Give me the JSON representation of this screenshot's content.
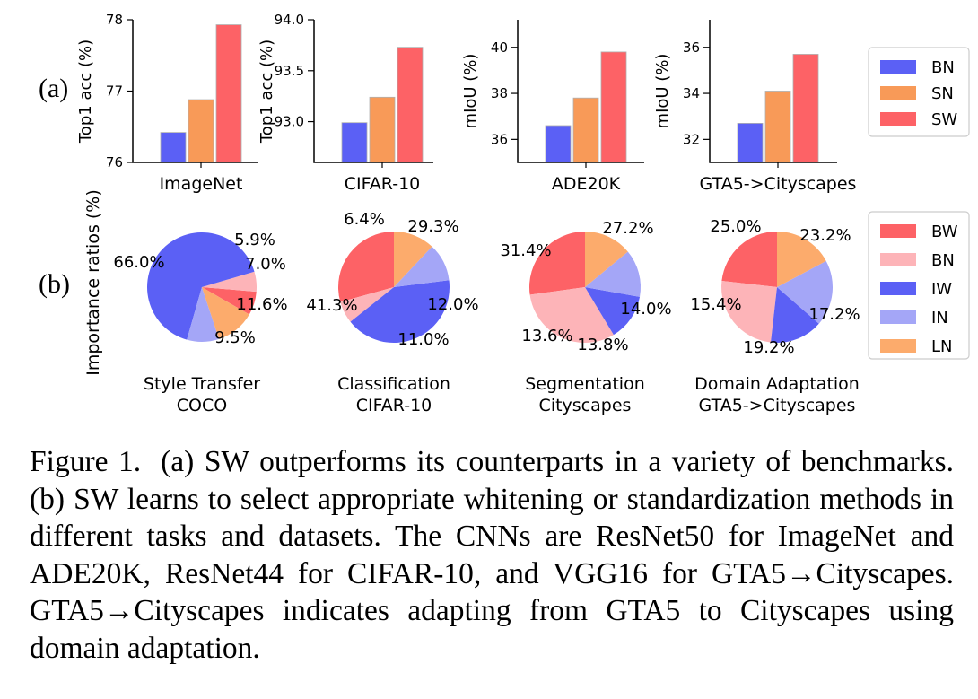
{
  "panel_labels": {
    "a": "(a)",
    "b": "(b)"
  },
  "chart_data": [
    {
      "type": "bar",
      "panel": "a",
      "xlabel": "ImageNet",
      "ylabel": "Top1 acc (%)",
      "ylim": [
        76,
        78
      ],
      "yticks": [
        76,
        77,
        78
      ],
      "ytick_labels": [
        "76",
        "77",
        "78"
      ],
      "categories": [
        "BN",
        "SN",
        "SW"
      ],
      "values": [
        76.42,
        76.88,
        77.93
      ]
    },
    {
      "type": "bar",
      "panel": "a",
      "xlabel": "CIFAR-10",
      "ylabel": "Top1 acc (%)",
      "ylim": [
        92.6,
        94.0
      ],
      "yticks": [
        93.0,
        93.5,
        94.0
      ],
      "ytick_labels": [
        "93.0",
        "93.5",
        "94.0"
      ],
      "categories": [
        "BN",
        "SN",
        "SW"
      ],
      "values": [
        92.99,
        93.24,
        93.73
      ]
    },
    {
      "type": "bar",
      "panel": "a",
      "xlabel": "ADE20K",
      "ylabel": "mIoU (%)",
      "ylim": [
        35.0,
        41.2
      ],
      "yticks": [
        36,
        38,
        40
      ],
      "ytick_labels": [
        "36",
        "38",
        "40"
      ],
      "categories": [
        "BN",
        "SN",
        "SW"
      ],
      "values": [
        36.6,
        37.8,
        39.8
      ]
    },
    {
      "type": "bar",
      "panel": "a",
      "xlabel": "GTA5->Cityscapes",
      "ylabel": "mIoU (%)",
      "ylim": [
        31.0,
        37.2
      ],
      "yticks": [
        32,
        34,
        36
      ],
      "ytick_labels": [
        "32",
        "34",
        "36"
      ],
      "categories": [
        "BN",
        "SN",
        "SW"
      ],
      "values": [
        32.7,
        34.1,
        35.7
      ]
    },
    {
      "type": "pie",
      "panel": "b",
      "title": [
        "Style Transfer",
        "COCO"
      ],
      "labels": [
        "BW",
        "BN",
        "IW",
        "IN",
        "LN"
      ],
      "values": [
        7.0,
        5.9,
        66.0,
        9.5,
        11.6
      ],
      "value_labels": [
        "7.0%",
        "5.9%",
        "66.0%",
        "9.5%",
        "11.6%"
      ]
    },
    {
      "type": "pie",
      "panel": "b",
      "title": [
        "Classification",
        "CIFAR-10"
      ],
      "labels": [
        "BW",
        "BN",
        "IW",
        "IN",
        "LN"
      ],
      "values": [
        29.3,
        6.4,
        41.3,
        11.0,
        12.0
      ],
      "value_labels": [
        "29.3%",
        "6.4%",
        "41.3%",
        "11.0%",
        "12.0%"
      ]
    },
    {
      "type": "pie",
      "panel": "b",
      "title": [
        "Segmentation",
        "Cityscapes"
      ],
      "labels": [
        "BW",
        "BN",
        "IW",
        "IN",
        "LN"
      ],
      "values": [
        27.2,
        31.4,
        13.6,
        13.8,
        14.0
      ],
      "value_labels": [
        "27.2%",
        "31.4%",
        "13.6%",
        "13.8%",
        "14.0%"
      ]
    },
    {
      "type": "pie",
      "panel": "b",
      "title": [
        "Domain Adaptation",
        "GTA5->Cityscapes"
      ],
      "labels": [
        "BW",
        "BN",
        "IW",
        "IN",
        "LN"
      ],
      "values": [
        23.2,
        25.0,
        15.4,
        19.2,
        17.2
      ],
      "value_labels": [
        "23.2%",
        "25.0%",
        "15.4%",
        "19.2%",
        "17.2%"
      ]
    }
  ],
  "pie_ylabel": "Importance ratios (%)",
  "legend_a": [
    {
      "label": "BN",
      "color": "#5b60f5"
    },
    {
      "label": "SN",
      "color": "#f89a58"
    },
    {
      "label": "SW",
      "color": "#fd6266"
    }
  ],
  "legend_b": [
    {
      "label": "BW",
      "color": "#fd6266"
    },
    {
      "label": "BN",
      "color": "#fdb4b8"
    },
    {
      "label": "IW",
      "color": "#5b60f5"
    },
    {
      "label": "IN",
      "color": "#a4a6f7"
    },
    {
      "label": "LN",
      "color": "#fcab6c"
    }
  ],
  "bar_colors": {
    "BN": "#5b60f5",
    "SN": "#f89a58",
    "SW": "#fd6266"
  },
  "pie_colors": {
    "BW": "#fd6266",
    "BN": "#fdb4b8",
    "IW": "#5b60f5",
    "IN": "#a4a6f7",
    "LN": "#fcab6c"
  },
  "caption": {
    "label": "Figure 1.",
    "text": "(a) SW outperforms its counterparts in a variety of benchmarks. (b) SW learns to select appropriate whitening or standardization methods in different tasks and datasets. The CNNs are ResNet50 for ImageNet and ADE20K, ResNet44 for CIFAR-10, and VGG16 for GTA5→Cityscapes. GTA5→Cityscapes indicates adapting from GTA5 to Cityscapes using domain adaptation."
  }
}
